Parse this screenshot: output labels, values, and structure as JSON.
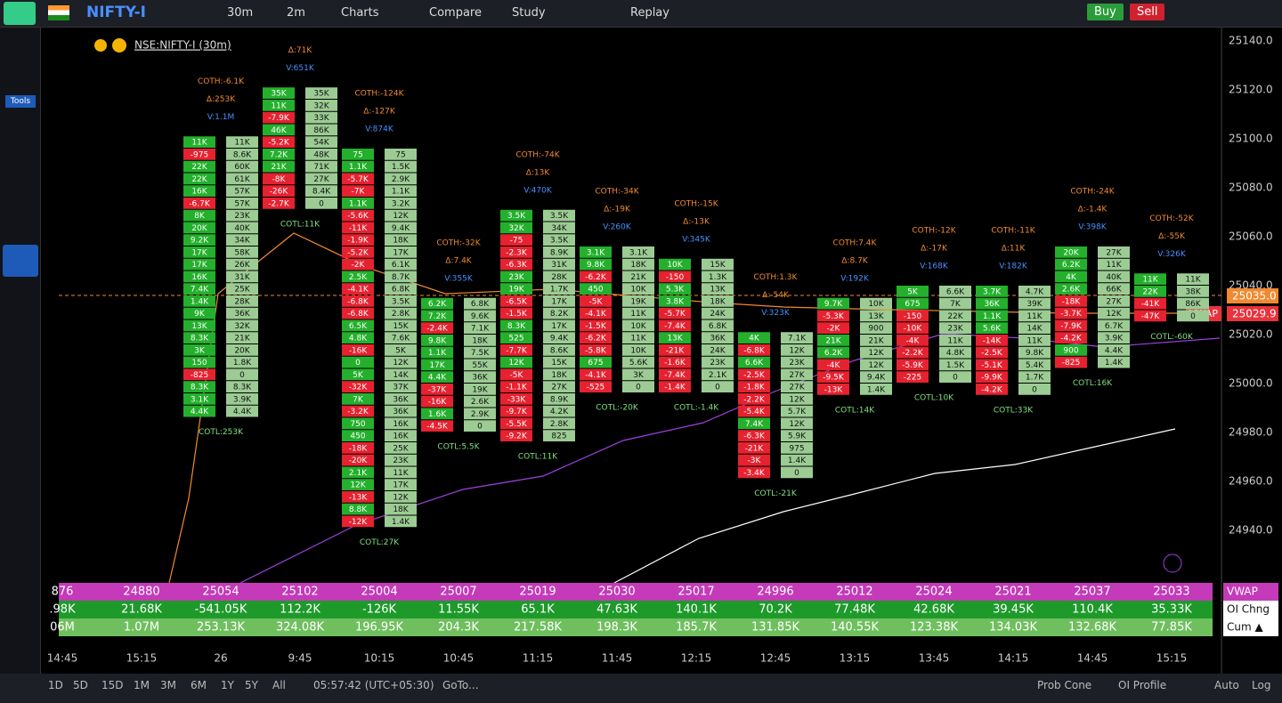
{
  "toolbar": {
    "symbol": "NIFTY-I",
    "interval": "30m",
    "sub_interval": "2m",
    "charts": "Charts",
    "compare": "Compare",
    "study": "Study",
    "replay": "Replay",
    "buy": "Buy",
    "sell": "Sell"
  },
  "sidebar": {
    "tools": "Tools"
  },
  "legend": {
    "symbol": "NSE:NIFTY-I (30m)"
  },
  "price_axis": {
    "ticks": [
      "25140.0",
      "25120.0",
      "25100.0",
      "25080.0",
      "25060.0",
      "25040.0",
      "25020.0",
      "25000.0",
      "24980.0",
      "24960.0",
      "24940.0"
    ],
    "last_price": "25035.0",
    "vwap_price": "25029.9",
    "vwap_tag": "VWAP"
  },
  "time_axis": [
    "14:45",
    "15:15",
    "26",
    "9:45",
    "10:15",
    "10:45",
    "11:15",
    "11:45",
    "12:15",
    "12:45",
    "13:15",
    "13:45",
    "14:15",
    "14:45",
    "15:15"
  ],
  "footprints": [
    {
      "top": 25101,
      "coth": "COTH:-6.1K",
      "delta": "Δ:253K",
      "vol": "V:1.1M",
      "cotl": "COTL:253K",
      "cells": [
        [
          "11K",
          "11K"
        ],
        [
          "-975",
          "8.6K"
        ],
        [
          "22K",
          "60K"
        ],
        [
          "22K",
          "61K"
        ],
        [
          "16K",
          "57K"
        ],
        [
          "-6.7K",
          "57K"
        ],
        [
          "8K",
          "23K"
        ],
        [
          "20K",
          "40K"
        ],
        [
          "9.2K",
          "34K"
        ],
        [
          "17K",
          "58K"
        ],
        [
          "17K",
          "26K"
        ],
        [
          "16K",
          "31K"
        ],
        [
          "7.4K",
          "25K"
        ],
        [
          "1.4K",
          "28K"
        ],
        [
          "9K",
          "36K"
        ],
        [
          "13K",
          "32K"
        ],
        [
          "8.3K",
          "21K"
        ],
        [
          "3K",
          "20K"
        ],
        [
          "150",
          "1.8K"
        ],
        [
          "-825",
          "0"
        ],
        [
          "8.3K",
          "8.3K"
        ],
        [
          "3.1K",
          "3.9K"
        ],
        [
          "4.4K",
          "4.4K"
        ]
      ]
    },
    {
      "top": 25121,
      "delta": "Δ:71K",
      "vol": "V:651K",
      "cotl": "COTL:11K",
      "cells": [
        [
          "35K",
          "35K"
        ],
        [
          "11K",
          "32K"
        ],
        [
          "-7.9K",
          "33K"
        ],
        [
          "46K",
          "86K"
        ],
        [
          "-5.2K",
          "54K"
        ],
        [
          "7.2K",
          "48K"
        ],
        [
          "21K",
          "71K"
        ],
        [
          "-8K",
          "27K"
        ],
        [
          "-26K",
          "8.4K"
        ],
        [
          "-2.7K",
          "0"
        ]
      ]
    },
    {
      "top": 25096,
      "coth": "COTH:-124K",
      "delta": "Δ:-127K",
      "vol": "V:874K",
      "cotl": "COTL:27K",
      "cells": [
        [
          "75",
          "75"
        ],
        [
          "1.1K",
          "1.5K"
        ],
        [
          "-5.7K",
          "2.9K"
        ],
        [
          "-7K",
          "1.1K"
        ],
        [
          "1.1K",
          "3.2K"
        ],
        [
          "-5.6K",
          "12K"
        ],
        [
          "-11K",
          "9.4K"
        ],
        [
          "-1.9K",
          "18K"
        ],
        [
          "-5.2K",
          "17K"
        ],
        [
          "-2K",
          "6.1K"
        ],
        [
          "2.5K",
          "8.7K"
        ],
        [
          "-4.1K",
          "6.8K"
        ],
        [
          "-6.8K",
          "3.5K"
        ],
        [
          "-6.8K",
          "2.8K"
        ],
        [
          "6.5K",
          "15K"
        ],
        [
          "4.8K",
          "7.6K"
        ],
        [
          "-16K",
          "5K"
        ],
        [
          "0",
          "12K"
        ],
        [
          "5K",
          "14K"
        ],
        [
          "-32K",
          "37K"
        ],
        [
          "7K",
          "36K"
        ],
        [
          "-3.2K",
          "36K"
        ],
        [
          "750",
          "16K"
        ],
        [
          "450",
          "16K"
        ],
        [
          "-18K",
          "25K"
        ],
        [
          "-20K",
          "23K"
        ],
        [
          "2.1K",
          "11K"
        ],
        [
          "12K",
          "17K"
        ],
        [
          "-13K",
          "12K"
        ],
        [
          "8.8K",
          "18K"
        ],
        [
          "-12K",
          "1.4K"
        ]
      ]
    },
    {
      "top": 25035,
      "coth": "COTH:-32K",
      "delta": "Δ:7.4K",
      "vol": "V:355K",
      "cotl": "COTL:5.5K",
      "cells": [
        [
          "6.2K",
          "6.8K"
        ],
        [
          "7.2K",
          "9.6K"
        ],
        [
          "-2.4K",
          "7.1K"
        ],
        [
          "9.8K",
          "18K"
        ],
        [
          "1.1K",
          "7.5K"
        ],
        [
          "17K",
          "55K"
        ],
        [
          "4.4K",
          "36K"
        ],
        [
          "-37K",
          "19K"
        ],
        [
          "-16K",
          "2.6K"
        ],
        [
          "1.6K",
          "2.9K"
        ],
        [
          "-4.5K",
          "0"
        ]
      ]
    },
    {
      "top": 25071,
      "coth": "COTH:-74K",
      "delta": "Δ:13K",
      "vol": "V:470K",
      "cotl": "COTL:11K",
      "cells": [
        [
          "3.5K",
          "3.5K"
        ],
        [
          "32K",
          "34K"
        ],
        [
          "-75",
          "3.5K"
        ],
        [
          "-2.3K",
          "8.9K"
        ],
        [
          "-6.3K",
          "31K"
        ],
        [
          "23K",
          "28K"
        ],
        [
          "19K",
          "1.7K"
        ],
        [
          "-6.5K",
          "17K"
        ],
        [
          "-1.5K",
          "8.2K"
        ],
        [
          "8.3K",
          "17K"
        ],
        [
          "525",
          "9.4K"
        ],
        [
          "-7.7K",
          "8.6K"
        ],
        [
          "12K",
          "15K"
        ],
        [
          "-5K",
          "18K"
        ],
        [
          "-1.1K",
          "27K"
        ],
        [
          "-33K",
          "8.9K"
        ],
        [
          "-9.7K",
          "4.2K"
        ],
        [
          "-5.5K",
          "2.8K"
        ],
        [
          "-9.2K",
          "825"
        ]
      ]
    },
    {
      "top": 25056,
      "coth": "COTH:-34K",
      "delta": "Δ:-19K",
      "vol": "V:260K",
      "cotl": "COTL:-20K",
      "cells": [
        [
          "3.1K",
          "3.1K"
        ],
        [
          "9.8K",
          "18K"
        ],
        [
          "-6.2K",
          "21K"
        ],
        [
          "450",
          "10K"
        ],
        [
          "-5K",
          "19K"
        ],
        [
          "-4.1K",
          "11K"
        ],
        [
          "-1.5K",
          "10K"
        ],
        [
          "-6.2K",
          "11K"
        ],
        [
          "-5.8K",
          "10K"
        ],
        [
          "675",
          "5.6K"
        ],
        [
          "-4.1K",
          "3K"
        ],
        [
          "-525",
          "0"
        ]
      ]
    },
    {
      "top": 25051,
      "coth": "COTH:-15K",
      "delta": "Δ:-13K",
      "vol": "V:345K",
      "cotl": "COTL:-1.4K",
      "cells": [
        [
          "10K",
          "15K"
        ],
        [
          "-150",
          "1.3K"
        ],
        [
          "5.3K",
          "13K"
        ],
        [
          "3.8K",
          "18K"
        ],
        [
          "-5.7K",
          "24K"
        ],
        [
          "-7.4K",
          "6.8K"
        ],
        [
          "13K",
          "36K"
        ],
        [
          "-21K",
          "24K"
        ],
        [
          "-1.6K",
          "23K"
        ],
        [
          "-7.4K",
          "2.1K"
        ],
        [
          "-1.4K",
          "0"
        ]
      ]
    },
    {
      "top": 25021,
      "coth": "COTH:1.3K",
      "delta": "Δ:-54K",
      "vol": "V:323K",
      "cotl": "COTL:-21K",
      "cells": [
        [
          "4K",
          "7.1K"
        ],
        [
          "-6.8K",
          "12K"
        ],
        [
          "6.6K",
          "23K"
        ],
        [
          "-2.5K",
          "27K"
        ],
        [
          "-1.8K",
          "27K"
        ],
        [
          "-2.2K",
          "12K"
        ],
        [
          "-5.4K",
          "5.7K"
        ],
        [
          "7.4K",
          "12K"
        ],
        [
          "-6.3K",
          "5.9K"
        ],
        [
          "-21K",
          "975"
        ],
        [
          "-3K",
          "1.4K"
        ],
        [
          "-3.4K",
          "0"
        ]
      ]
    },
    {
      "top": 25035,
      "coth": "COTH:7.4K",
      "delta": "Δ:8.7K",
      "vol": "V:192K",
      "cotl": "COTL:14K",
      "cells": [
        [
          "9.7K",
          "10K"
        ],
        [
          "-5.3K",
          "13K"
        ],
        [
          "-2K",
          "900"
        ],
        [
          "21K",
          "21K"
        ],
        [
          "6.2K",
          "12K"
        ],
        [
          "-4K",
          "12K"
        ],
        [
          "-9.5K",
          "9.4K"
        ],
        [
          "-13K",
          "1.4K"
        ]
      ]
    },
    {
      "top": 25040,
      "coth": "COTH:-12K",
      "delta": "Δ:-17K",
      "vol": "V:168K",
      "cotl": "COTL:10K",
      "cells": [
        [
          "5K",
          "6.6K"
        ],
        [
          "675",
          "7K"
        ],
        [
          "-150",
          "22K"
        ],
        [
          "-10K",
          "23K"
        ],
        [
          "-4K",
          "11K"
        ],
        [
          "-2.2K",
          "4.8K"
        ],
        [
          "-5.9K",
          "1.5K"
        ],
        [
          "-225",
          "0"
        ]
      ]
    },
    {
      "top": 25040,
      "coth": "COTH:-11K",
      "delta": "Δ:11K",
      "vol": "V:182K",
      "cotl": "COTL:33K",
      "cells": [
        [
          "3.7K",
          "4.7K"
        ],
        [
          "36K",
          "39K"
        ],
        [
          "1.1K",
          "11K"
        ],
        [
          "5.6K",
          "14K"
        ],
        [
          "-14K",
          "11K"
        ],
        [
          "-2.5K",
          "9.8K"
        ],
        [
          "-5.1K",
          "5.4K"
        ],
        [
          "-9.9K",
          "1.7K"
        ],
        [
          "-4.2K",
          "0"
        ]
      ]
    },
    {
      "top": 25056,
      "coth": "COTH:-24K",
      "delta": "Δ:-1.4K",
      "vol": "V:398K",
      "cotl": "COTL:16K",
      "cells": [
        [
          "20K",
          "27K"
        ],
        [
          "6.2K",
          "11K"
        ],
        [
          "4K",
          "40K"
        ],
        [
          "2.6K",
          "66K"
        ],
        [
          "-18K",
          "27K"
        ],
        [
          "-3.7K",
          "12K"
        ],
        [
          "-7.9K",
          "6.7K"
        ],
        [
          "-4.2K",
          "3.9K"
        ],
        [
          "900",
          "4.4K"
        ],
        [
          "-825",
          "1.4K"
        ]
      ]
    },
    {
      "top": 25045,
      "coth": "COTH:-52K",
      "delta": "Δ:-55K",
      "vol": "V:326K",
      "cotl": "COTL:-60K",
      "cells": [
        [
          "11K",
          "11K"
        ],
        [
          "22K",
          "38K"
        ],
        [
          "-41K",
          "86K"
        ],
        [
          "-47K",
          "0"
        ]
      ]
    }
  ],
  "summary_table": {
    "row_labels": [
      "VWAP",
      "OI Chng",
      "Cum ▲"
    ],
    "rows": [
      [
        "876",
        "24880",
        "25054",
        "25102",
        "25004",
        "25007",
        "25019",
        "25030",
        "25017",
        "24996",
        "25012",
        "25024",
        "25021",
        "25037",
        "25033"
      ],
      [
        ".98K",
        "21.68K",
        "-541.05K",
        "112.2K",
        "-126K",
        "11.55K",
        "65.1K",
        "47.63K",
        "140.1K",
        "70.2K",
        "77.48K",
        "42.68K",
        "39.45K",
        "110.4K",
        "35.33K"
      ],
      [
        "06M",
        "1.07M",
        "253.13K",
        "324.08K",
        "196.95K",
        "204.3K",
        "217.58K",
        "198.3K",
        "185.7K",
        "131.85K",
        "140.55K",
        "123.38K",
        "134.03K",
        "132.68K",
        "77.85K"
      ]
    ]
  },
  "bottom_bar": {
    "ranges": [
      "1D",
      "5D",
      "15D",
      "1M",
      "3M",
      "6M",
      "1Y",
      "5Y",
      "All"
    ],
    "clock": "05:57:42 (UTC+05:30)",
    "goto": "GoTo...",
    "prob_cone": "Prob Cone",
    "oi_profile": "OI Profile",
    "auto": "Auto",
    "log": "Log"
  }
}
